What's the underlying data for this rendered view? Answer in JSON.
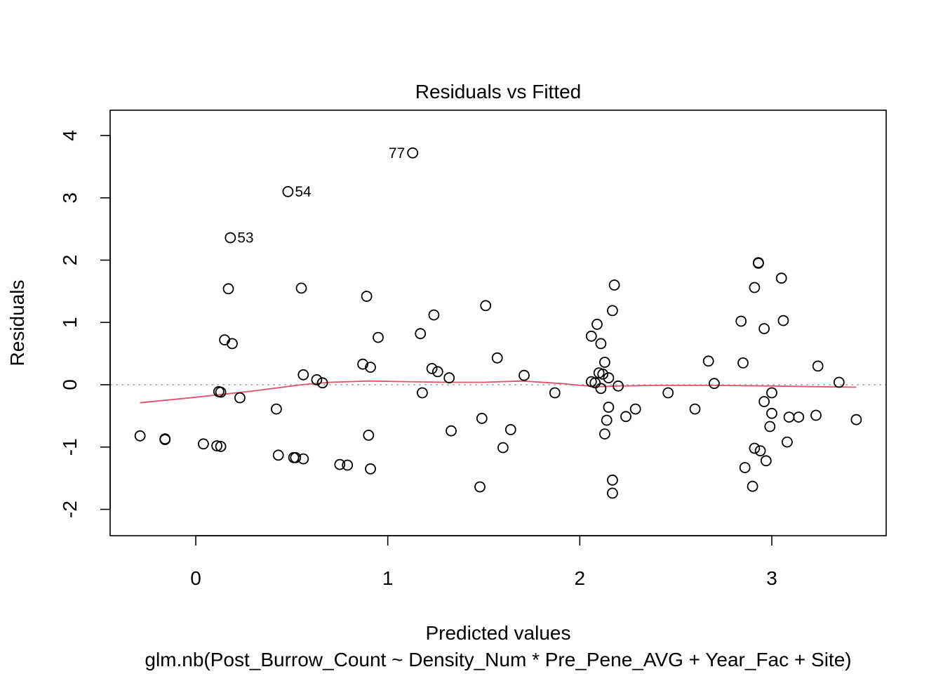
{
  "chart_data": {
    "type": "scatter",
    "title": "Residuals vs Fitted",
    "xlabel": "Predicted values",
    "subtitle": "glm.nb(Post_Burrow_Count ~ Density_Num * Pre_Pene_AVG + Year_Fac + Site)",
    "ylabel": "Residuals",
    "xlim": [
      -0.45,
      3.6
    ],
    "ylim": [
      -2.45,
      4.4
    ],
    "xticks": [
      0,
      1,
      2,
      3
    ],
    "yticks": [
      -2,
      -1,
      0,
      1,
      2,
      3,
      4
    ],
    "xtick_labels": [
      "0",
      "1",
      "2",
      "3"
    ],
    "ytick_labels": [
      "-2",
      "-1",
      "0",
      "1",
      "2",
      "3",
      "4"
    ],
    "reference_line": {
      "y": 0,
      "style": "dotted",
      "color": "#bebebe"
    },
    "smooth_color": "#df536b",
    "point_color": "#000000",
    "points": [
      {
        "x": -0.29,
        "y": -0.82
      },
      {
        "x": -0.16,
        "y": -0.88
      },
      {
        "x": -0.16,
        "y": -0.87
      },
      {
        "x": 0.04,
        "y": -0.95
      },
      {
        "x": 0.11,
        "y": -0.98
      },
      {
        "x": 0.13,
        "y": -0.99
      },
      {
        "x": 0.12,
        "y": -0.11
      },
      {
        "x": 0.13,
        "y": -0.12
      },
      {
        "x": 0.15,
        "y": 0.72
      },
      {
        "x": 0.17,
        "y": 1.54
      },
      {
        "x": 0.18,
        "y": 2.36
      },
      {
        "x": 0.19,
        "y": 0.66
      },
      {
        "x": 0.23,
        "y": -0.21
      },
      {
        "x": 0.42,
        "y": -0.39
      },
      {
        "x": 0.43,
        "y": -1.13
      },
      {
        "x": 0.48,
        "y": 3.1
      },
      {
        "x": 0.51,
        "y": -1.17
      },
      {
        "x": 0.52,
        "y": -1.17
      },
      {
        "x": 0.55,
        "y": 1.55
      },
      {
        "x": 0.56,
        "y": -1.19
      },
      {
        "x": 0.56,
        "y": 0.16
      },
      {
        "x": 0.63,
        "y": 0.08
      },
      {
        "x": 0.66,
        "y": 0.03
      },
      {
        "x": 0.75,
        "y": -1.28
      },
      {
        "x": 0.79,
        "y": -1.29
      },
      {
        "x": 0.87,
        "y": 0.33
      },
      {
        "x": 0.89,
        "y": 1.42
      },
      {
        "x": 0.9,
        "y": -0.81
      },
      {
        "x": 0.91,
        "y": 0.28
      },
      {
        "x": 0.91,
        "y": -1.35
      },
      {
        "x": 0.95,
        "y": 0.76
      },
      {
        "x": 1.13,
        "y": 3.72
      },
      {
        "x": 1.17,
        "y": 0.82
      },
      {
        "x": 1.18,
        "y": -0.13
      },
      {
        "x": 1.23,
        "y": 0.26
      },
      {
        "x": 1.24,
        "y": 1.12
      },
      {
        "x": 1.26,
        "y": 0.21
      },
      {
        "x": 1.32,
        "y": 0.11
      },
      {
        "x": 1.33,
        "y": -0.74
      },
      {
        "x": 1.48,
        "y": -1.64
      },
      {
        "x": 1.49,
        "y": -0.54
      },
      {
        "x": 1.51,
        "y": 1.27
      },
      {
        "x": 1.57,
        "y": 0.43
      },
      {
        "x": 1.6,
        "y": -1.01
      },
      {
        "x": 1.64,
        "y": -0.72
      },
      {
        "x": 1.71,
        "y": 0.15
      },
      {
        "x": 1.87,
        "y": -0.13
      },
      {
        "x": 2.06,
        "y": 0.78
      },
      {
        "x": 2.06,
        "y": 0.05
      },
      {
        "x": 2.08,
        "y": 0.03
      },
      {
        "x": 2.09,
        "y": 0.97
      },
      {
        "x": 2.1,
        "y": 0.19
      },
      {
        "x": 2.11,
        "y": 0.66
      },
      {
        "x": 2.11,
        "y": -0.06
      },
      {
        "x": 2.12,
        "y": 0.17
      },
      {
        "x": 2.13,
        "y": 0.36
      },
      {
        "x": 2.13,
        "y": -0.79
      },
      {
        "x": 2.14,
        "y": -0.57
      },
      {
        "x": 2.15,
        "y": 0.11
      },
      {
        "x": 2.15,
        "y": -0.36
      },
      {
        "x": 2.17,
        "y": 1.19
      },
      {
        "x": 2.17,
        "y": -1.53
      },
      {
        "x": 2.17,
        "y": -1.74
      },
      {
        "x": 2.18,
        "y": 1.6
      },
      {
        "x": 2.2,
        "y": -0.02
      },
      {
        "x": 2.24,
        "y": -0.51
      },
      {
        "x": 2.29,
        "y": -0.39
      },
      {
        "x": 2.46,
        "y": -0.13
      },
      {
        "x": 2.6,
        "y": -0.39
      },
      {
        "x": 2.67,
        "y": 0.38
      },
      {
        "x": 2.7,
        "y": 0.02
      },
      {
        "x": 2.84,
        "y": 1.02
      },
      {
        "x": 2.85,
        "y": 0.35
      },
      {
        "x": 2.86,
        "y": -1.33
      },
      {
        "x": 2.9,
        "y": -1.63
      },
      {
        "x": 2.91,
        "y": 1.56
      },
      {
        "x": 2.91,
        "y": -1.02
      },
      {
        "x": 2.93,
        "y": 1.96
      },
      {
        "x": 2.93,
        "y": 1.95
      },
      {
        "x": 2.94,
        "y": -1.06
      },
      {
        "x": 2.96,
        "y": -0.27
      },
      {
        "x": 2.96,
        "y": 0.9
      },
      {
        "x": 2.97,
        "y": -1.22
      },
      {
        "x": 2.99,
        "y": -0.67
      },
      {
        "x": 3.0,
        "y": -0.46
      },
      {
        "x": 3.0,
        "y": -0.13
      },
      {
        "x": 3.05,
        "y": 1.71
      },
      {
        "x": 3.06,
        "y": 1.03
      },
      {
        "x": 3.08,
        "y": -0.92
      },
      {
        "x": 3.09,
        "y": -0.52
      },
      {
        "x": 3.14,
        "y": -0.52
      },
      {
        "x": 3.23,
        "y": -0.49
      },
      {
        "x": 3.24,
        "y": 0.3
      },
      {
        "x": 3.35,
        "y": 0.04
      },
      {
        "x": 3.44,
        "y": -0.56
      }
    ],
    "labeled_points": [
      {
        "label": "77",
        "x": 1.13,
        "y": 3.72,
        "side": "left"
      },
      {
        "label": "54",
        "x": 0.48,
        "y": 3.1,
        "side": "right"
      },
      {
        "label": "53",
        "x": 0.18,
        "y": 2.36,
        "side": "right"
      }
    ],
    "smooth_line": {
      "x": [
        -0.29,
        0.0,
        0.3,
        0.55,
        0.7,
        0.9,
        1.1,
        1.3,
        1.5,
        1.7,
        1.9,
        2.0,
        2.1,
        2.2,
        2.4,
        2.7,
        3.0,
        3.2,
        3.44
      ],
      "y": [
        -0.29,
        -0.2,
        -0.1,
        0.0,
        0.04,
        0.06,
        0.05,
        0.04,
        0.04,
        0.06,
        0.02,
        -0.01,
        -0.03,
        -0.02,
        -0.01,
        -0.01,
        -0.02,
        -0.03,
        -0.04
      ]
    }
  }
}
